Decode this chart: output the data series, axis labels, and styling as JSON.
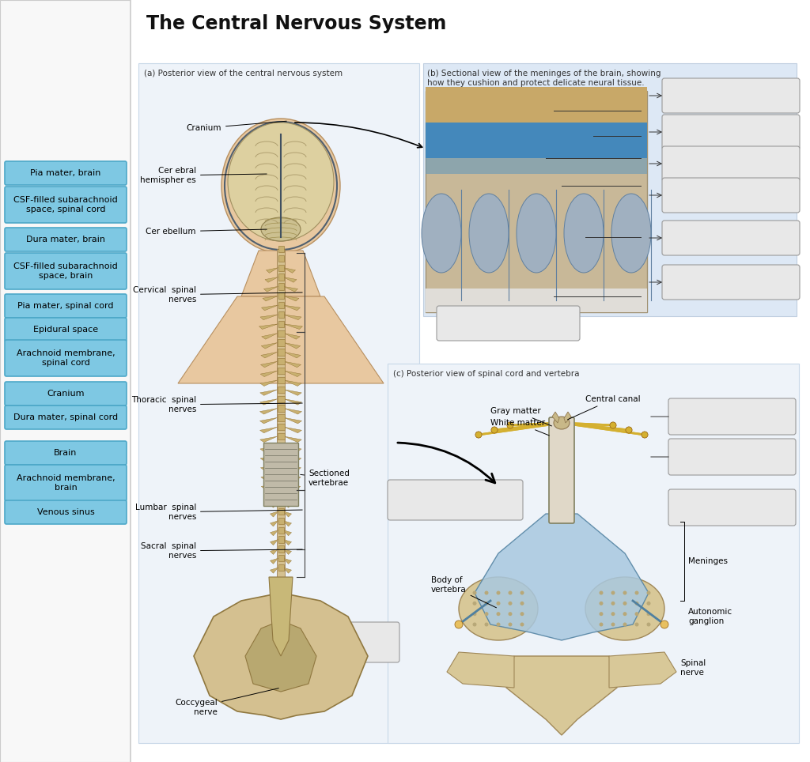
{
  "title": "The Central Nervous System",
  "title_fontsize": 17,
  "bg_color": "#ffffff",
  "left_labels": [
    "Pia mater, brain",
    "CSF-filled subarachnoid\nspace, spinal cord",
    "Dura mater, brain",
    "CSF-filled subarachnoid\nspace, brain",
    "Pia mater, spinal cord",
    "Epidural space",
    "Arachnoid membrane,\nspinal cord",
    "Cranium",
    "Dura mater, spinal cord",
    "Brain",
    "Arachnoid membrane,\nbrain",
    "Venous sinus"
  ],
  "label_box_color": "#7ec8e3",
  "label_box_edge": "#4da8c8",
  "label_text_color": "#000000",
  "label_fontsize": 8.0,
  "panel_a_label": "(a) Posterior view of the central nervous system",
  "panel_b_label": "(b) Sectional view of the meninges of the brain, showing\nhow they cushion and protect delicate neural tissue.",
  "panel_c_label": "(c) Posterior view of spinal cord and vertebra",
  "section_label_fontsize": 7.5,
  "section_label_color": "#333333",
  "answer_box_color": "#e8e8e8",
  "answer_box_edge": "#999999"
}
